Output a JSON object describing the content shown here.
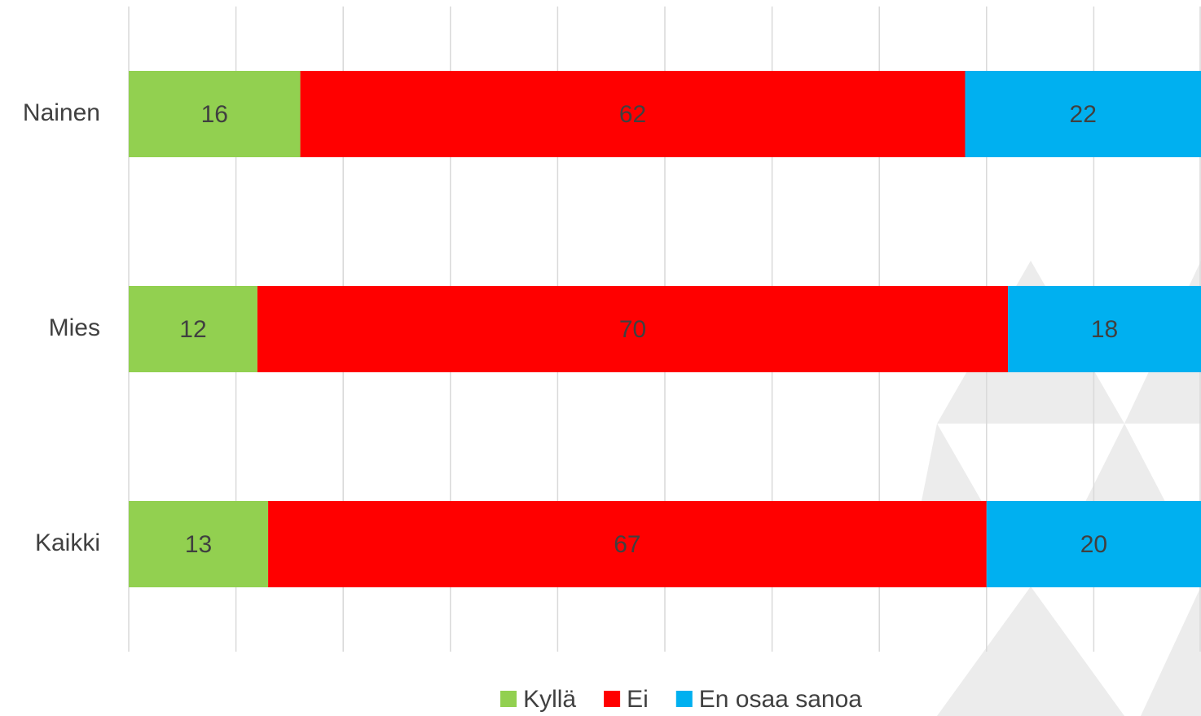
{
  "chart_data": {
    "type": "stacked-bar-horizontal",
    "categories": [
      "Nainen",
      "Mies",
      "Kaikki"
    ],
    "series": [
      {
        "name": "Kyllä",
        "color": "#92d050",
        "values": [
          16,
          12,
          13
        ]
      },
      {
        "name": "Ei",
        "color": "#ff0000",
        "values": [
          62,
          70,
          67
        ]
      },
      {
        "name": "En osaa sanoa",
        "color": "#00b0f0",
        "values": [
          22,
          18,
          20
        ]
      }
    ],
    "xlim": [
      0,
      100
    ],
    "xticks": [
      0,
      10,
      20,
      30,
      40,
      50,
      60,
      70,
      80,
      90,
      100
    ],
    "grid": true,
    "legend": "bottom"
  }
}
